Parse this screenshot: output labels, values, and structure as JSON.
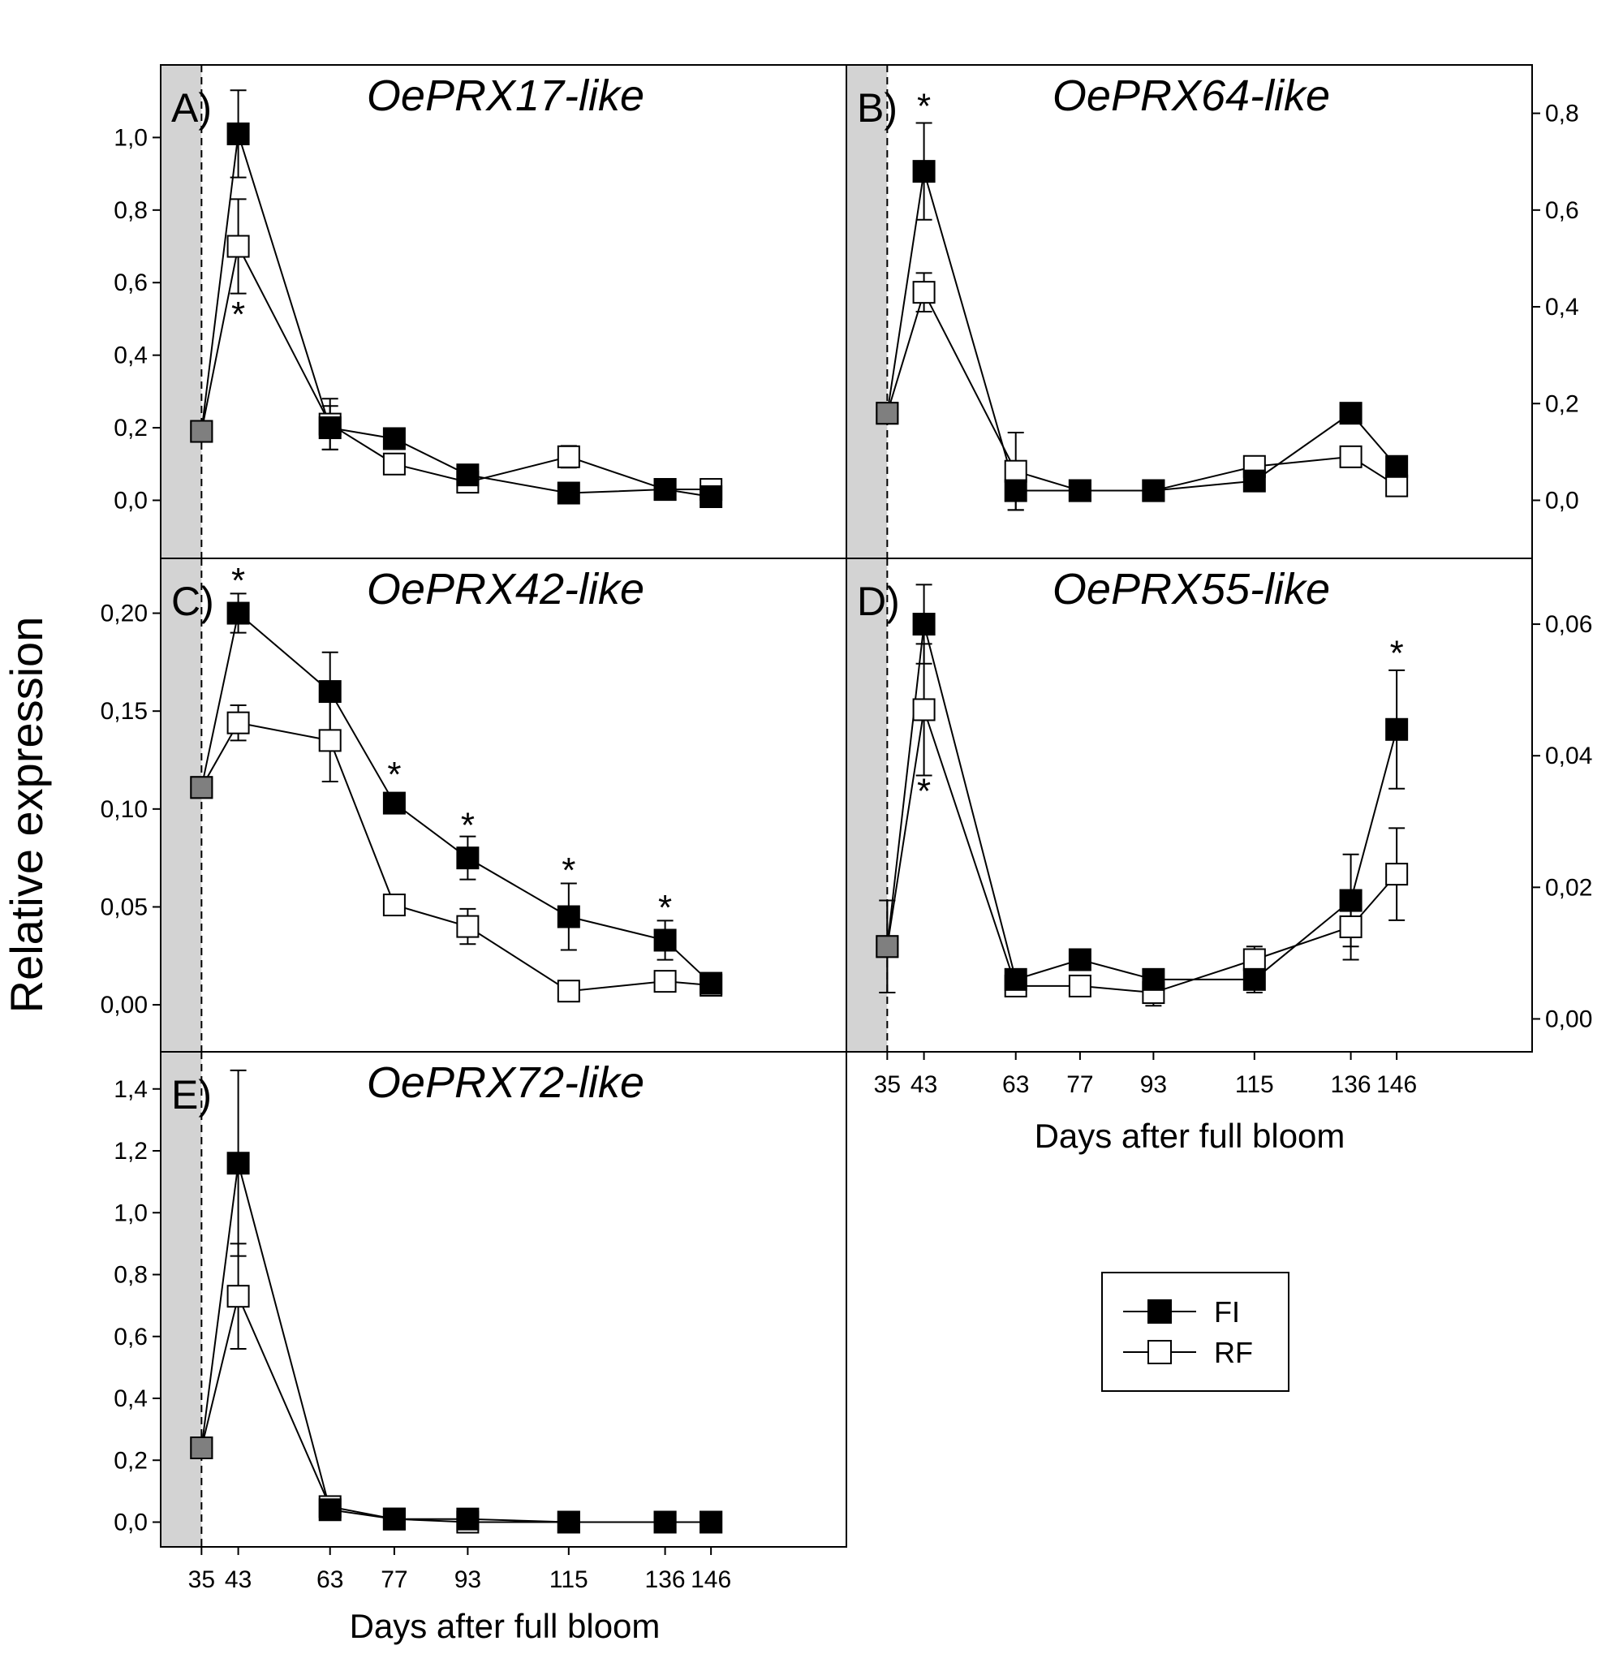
{
  "figure": {
    "ylabel": "Relative expression",
    "xlabel": "Days after full bloom",
    "legend": [
      {
        "label": "FI",
        "color": "#000000"
      },
      {
        "label": "RF",
        "color": "#ffffff"
      }
    ],
    "colors": {
      "shade": "#d3d3d3",
      "fi": "#000000",
      "rf": "#ffffff",
      "shared_point": "#7f7f7f"
    }
  },
  "chart_data": [
    {
      "id": "A",
      "type": "line",
      "letter": "A)",
      "title": "OePRX17-like",
      "xlabel": "Days after full bloom",
      "ylabel": "Relative expression",
      "x": [
        35,
        43,
        63,
        77,
        93,
        115,
        136,
        146
      ],
      "xticks": [
        "35",
        "43",
        "63",
        "77",
        "93",
        "115",
        "136",
        "146"
      ],
      "ylim": [
        -0.16,
        1.2
      ],
      "yticks": [
        0.0,
        0.2,
        0.4,
        0.6,
        0.8,
        1.0
      ],
      "ytick_labels": [
        "0,0",
        "0,2",
        "0,4",
        "0,6",
        "0,8",
        "1,0"
      ],
      "series": [
        {
          "name": "FI",
          "values": [
            0.19,
            1.01,
            0.2,
            0.17,
            0.07,
            0.02,
            0.03,
            0.01
          ],
          "errors": [
            0.02,
            0.12,
            0.06,
            0.01,
            0.01,
            0.01,
            0.01,
            0.01
          ]
        },
        {
          "name": "RF",
          "values": [
            0.19,
            0.7,
            0.21,
            0.1,
            0.05,
            0.12,
            0.03,
            0.03
          ],
          "errors": [
            0.02,
            0.13,
            0.07,
            0.01,
            0.01,
            0.03,
            0.01,
            0.01
          ]
        }
      ],
      "stars": [
        {
          "x": 43,
          "value": 0.52,
          "text": "*"
        }
      ]
    },
    {
      "id": "B",
      "type": "line",
      "letter": "B)",
      "title": "OePRX64-like",
      "xlabel": "Days after full bloom",
      "x": [
        35,
        43,
        63,
        77,
        93,
        115,
        136,
        146
      ],
      "xticks": [
        "35",
        "43",
        "63",
        "77",
        "93",
        "115",
        "136",
        "146"
      ],
      "ylim": [
        -0.12,
        0.9
      ],
      "yticks": [
        0.0,
        0.2,
        0.4,
        0.6,
        0.8
      ],
      "ytick_labels": [
        "0,0",
        "0,2",
        "0,4",
        "0,6",
        "0,8"
      ],
      "series": [
        {
          "name": "FI",
          "values": [
            0.18,
            0.68,
            0.02,
            0.02,
            0.02,
            0.04,
            0.18,
            0.07
          ],
          "errors": [
            0.02,
            0.1,
            0.04,
            0.01,
            0.01,
            0.01,
            0.02,
            0.01
          ]
        },
        {
          "name": "RF",
          "values": [
            0.18,
            0.43,
            0.06,
            0.02,
            0.02,
            0.07,
            0.09,
            0.03
          ],
          "errors": [
            0.02,
            0.04,
            0.08,
            0.02,
            0.01,
            0.01,
            0.01,
            0.01
          ]
        }
      ],
      "stars": [
        {
          "x": 43,
          "value": 0.82,
          "text": "*"
        }
      ]
    },
    {
      "id": "C",
      "type": "line",
      "letter": "C)",
      "title": "OePRX42-like",
      "xlabel": "Days after full bloom",
      "ylabel": "Relative expression",
      "x": [
        35,
        43,
        63,
        77,
        93,
        115,
        136,
        146
      ],
      "xticks": [
        "35",
        "43",
        "63",
        "77",
        "93",
        "115",
        "136",
        "146"
      ],
      "ylim": [
        -0.024,
        0.228
      ],
      "yticks": [
        0.0,
        0.05,
        0.1,
        0.15,
        0.2
      ],
      "ytick_labels": [
        "0,00",
        "0,05",
        "0,10",
        "0,15",
        "0,20"
      ],
      "series": [
        {
          "name": "FI",
          "values": [
            0.111,
            0.2,
            0.16,
            0.103,
            0.075,
            0.045,
            0.033,
            0.011
          ],
          "errors": [
            0.004,
            0.01,
            0.02,
            0.004,
            0.011,
            0.017,
            0.01,
            0.002
          ]
        },
        {
          "name": "RF",
          "values": [
            0.111,
            0.144,
            0.135,
            0.051,
            0.04,
            0.007,
            0.012,
            0.01
          ],
          "errors": [
            0.004,
            0.009,
            0.021,
            0.003,
            0.009,
            0.002,
            0.003,
            0.002
          ]
        }
      ],
      "stars": [
        {
          "x": 43,
          "value": 0.218,
          "text": "*"
        },
        {
          "x": 77,
          "value": 0.119,
          "text": "*"
        },
        {
          "x": 93,
          "value": 0.093,
          "text": "*"
        },
        {
          "x": 115,
          "value": 0.07,
          "text": "*"
        },
        {
          "x": 136,
          "value": 0.051,
          "text": "*"
        }
      ]
    },
    {
      "id": "D",
      "type": "line",
      "letter": "D)",
      "title": "OePRX55-like",
      "xlabel": "Days after full bloom",
      "x": [
        35,
        43,
        63,
        77,
        93,
        115,
        136,
        146
      ],
      "xticks": [
        "35",
        "43",
        "63",
        "77",
        "93",
        "115",
        "136",
        "146"
      ],
      "ylim": [
        -0.005,
        0.07
      ],
      "yticks": [
        0.0,
        0.02,
        0.04,
        0.06
      ],
      "ytick_labels": [
        "0,00",
        "0,02",
        "0,04",
        "0,06"
      ],
      "series": [
        {
          "name": "FI",
          "values": [
            0.011,
            0.06,
            0.006,
            0.009,
            0.006,
            0.006,
            0.018,
            0.044
          ],
          "errors": [
            0.007,
            0.006,
            0.001,
            0.001,
            0.001,
            0.002,
            0.007,
            0.009
          ]
        },
        {
          "name": "RF",
          "values": [
            0.011,
            0.047,
            0.005,
            0.005,
            0.004,
            0.009,
            0.014,
            0.022
          ],
          "errors": [
            0.007,
            0.01,
            0.001,
            0.001,
            0.002,
            0.002,
            0.005,
            0.007
          ]
        }
      ],
      "stars": [
        {
          "x": 43,
          "value": 0.035,
          "text": "*"
        },
        {
          "x": 146,
          "value": 0.056,
          "text": "*"
        }
      ]
    },
    {
      "id": "E",
      "type": "line",
      "letter": "E)",
      "title": "OePRX72-like",
      "xlabel": "Days after full bloom",
      "ylabel": "Relative expression",
      "x": [
        35,
        43,
        63,
        77,
        93,
        115,
        136,
        146
      ],
      "xticks": [
        "35",
        "43",
        "63",
        "77",
        "93",
        "115",
        "136",
        "146"
      ],
      "ylim": [
        -0.08,
        1.52
      ],
      "yticks": [
        0.0,
        0.2,
        0.4,
        0.6,
        0.8,
        1.0,
        1.2,
        1.4
      ],
      "ytick_labels": [
        "0,0",
        "0,2",
        "0,4",
        "0,6",
        "0,8",
        "1,0",
        "1,2",
        "1,4"
      ],
      "series": [
        {
          "name": "FI",
          "values": [
            0.24,
            1.16,
            0.04,
            0.01,
            0.01,
            0.0,
            0.0,
            0.0
          ],
          "errors": [
            0.03,
            0.3,
            0.01,
            0.005,
            0.005,
            0.003,
            0.003,
            0.003
          ]
        },
        {
          "name": "RF",
          "values": [
            0.24,
            0.73,
            0.05,
            0.01,
            0.0,
            0.0,
            0.0,
            0.0
          ],
          "errors": [
            0.03,
            0.17,
            0.01,
            0.005,
            0.005,
            0.003,
            0.003,
            0.003
          ]
        }
      ],
      "stars": []
    }
  ]
}
